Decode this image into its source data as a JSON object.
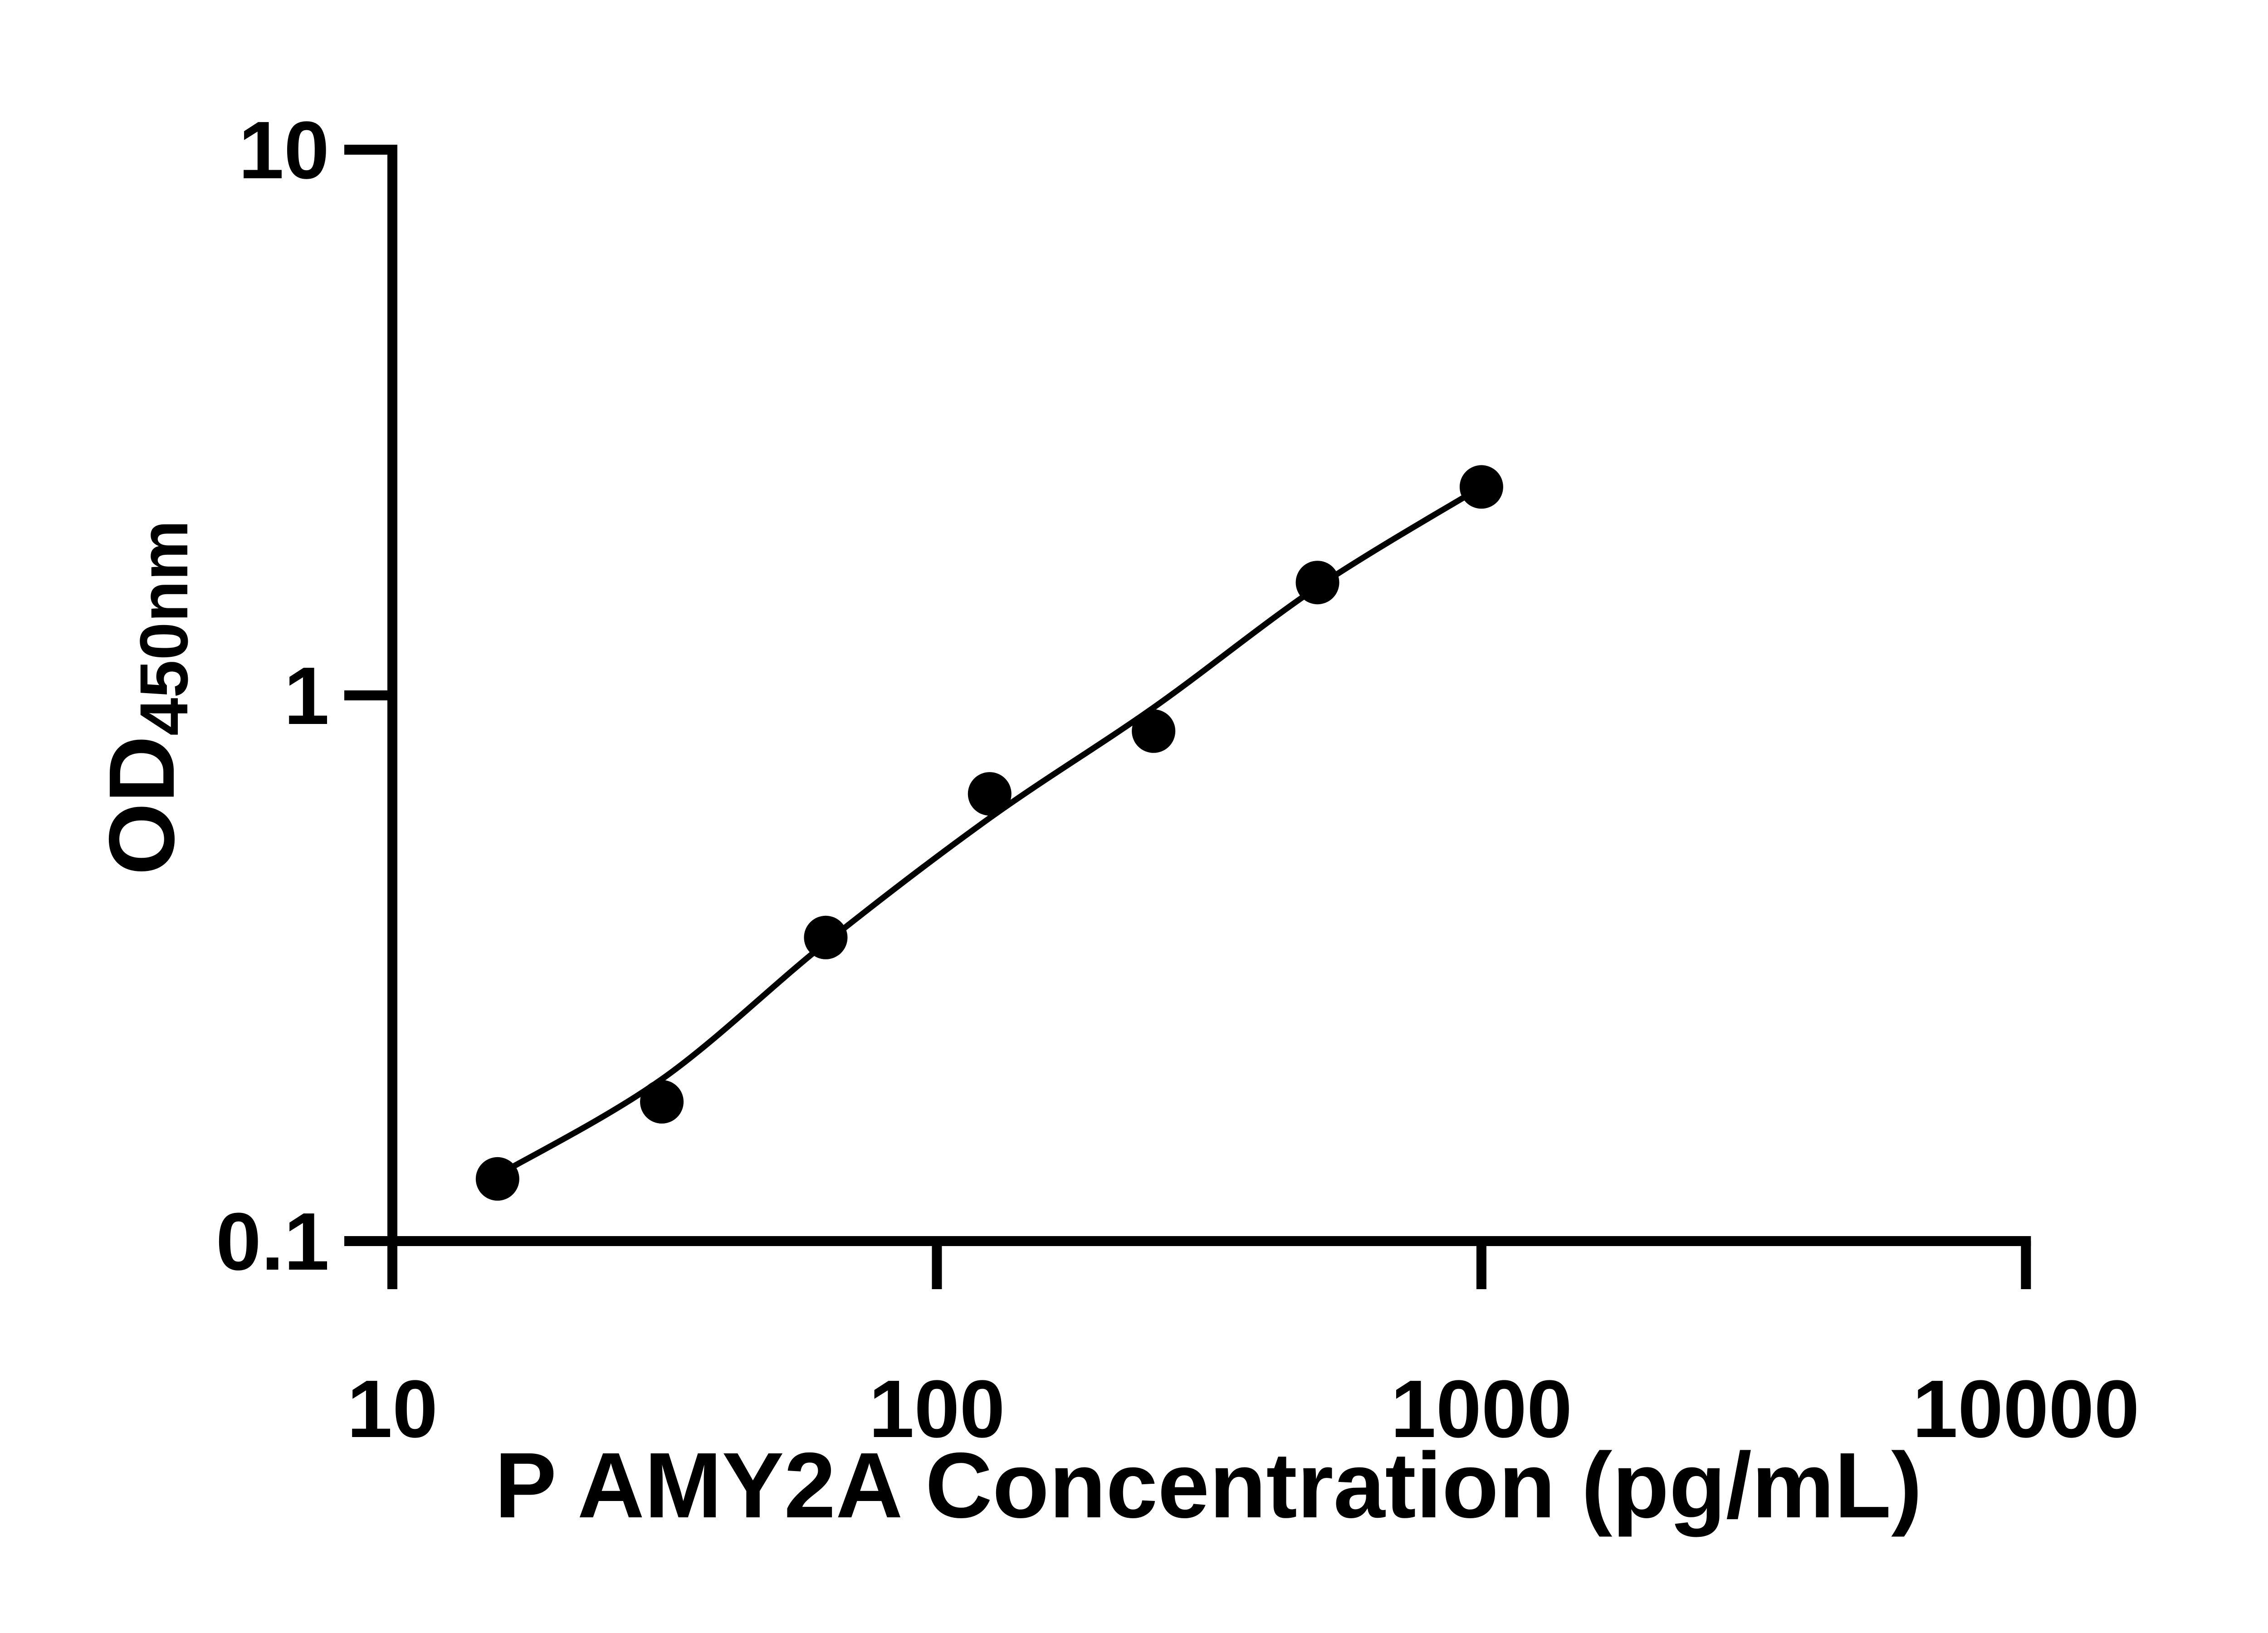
{
  "figure": {
    "background_color": "#ffffff",
    "ink_color": "#000000"
  },
  "chart_data": {
    "type": "scatter",
    "title": "",
    "xlabel": "P AMY2A Concentration (pg/mL)",
    "ylabel": "OD450nm",
    "ylabel_main": "OD",
    "ylabel_sub": "450nm",
    "x_scale": "log",
    "y_scale": "log",
    "xlim": [
      10,
      10000
    ],
    "ylim": [
      0.1,
      10
    ],
    "grid": false,
    "legend_position": "none",
    "x_ticks": {
      "values": [
        10,
        100,
        1000,
        10000
      ],
      "labels": [
        "10",
        "100",
        "1000",
        "10000"
      ]
    },
    "y_ticks": {
      "values": [
        10,
        1,
        0.1
      ],
      "labels": [
        "10",
        "1",
        "0.1"
      ]
    },
    "series": [
      {
        "name": "standard-points",
        "marker": "circle",
        "color": "#000000",
        "x": [
          15.6,
          31.25,
          62.5,
          125,
          250,
          500,
          1000
        ],
        "y": [
          0.13,
          0.18,
          0.36,
          0.66,
          0.86,
          1.61,
          2.41
        ]
      }
    ],
    "fit_curve": {
      "name": "standard-curve-fit",
      "color": "#000000",
      "x": [
        15.6,
        31.25,
        62.5,
        125,
        250,
        500,
        1000
      ],
      "y": [
        0.132,
        0.198,
        0.352,
        0.596,
        0.95,
        1.58,
        2.41
      ]
    }
  }
}
